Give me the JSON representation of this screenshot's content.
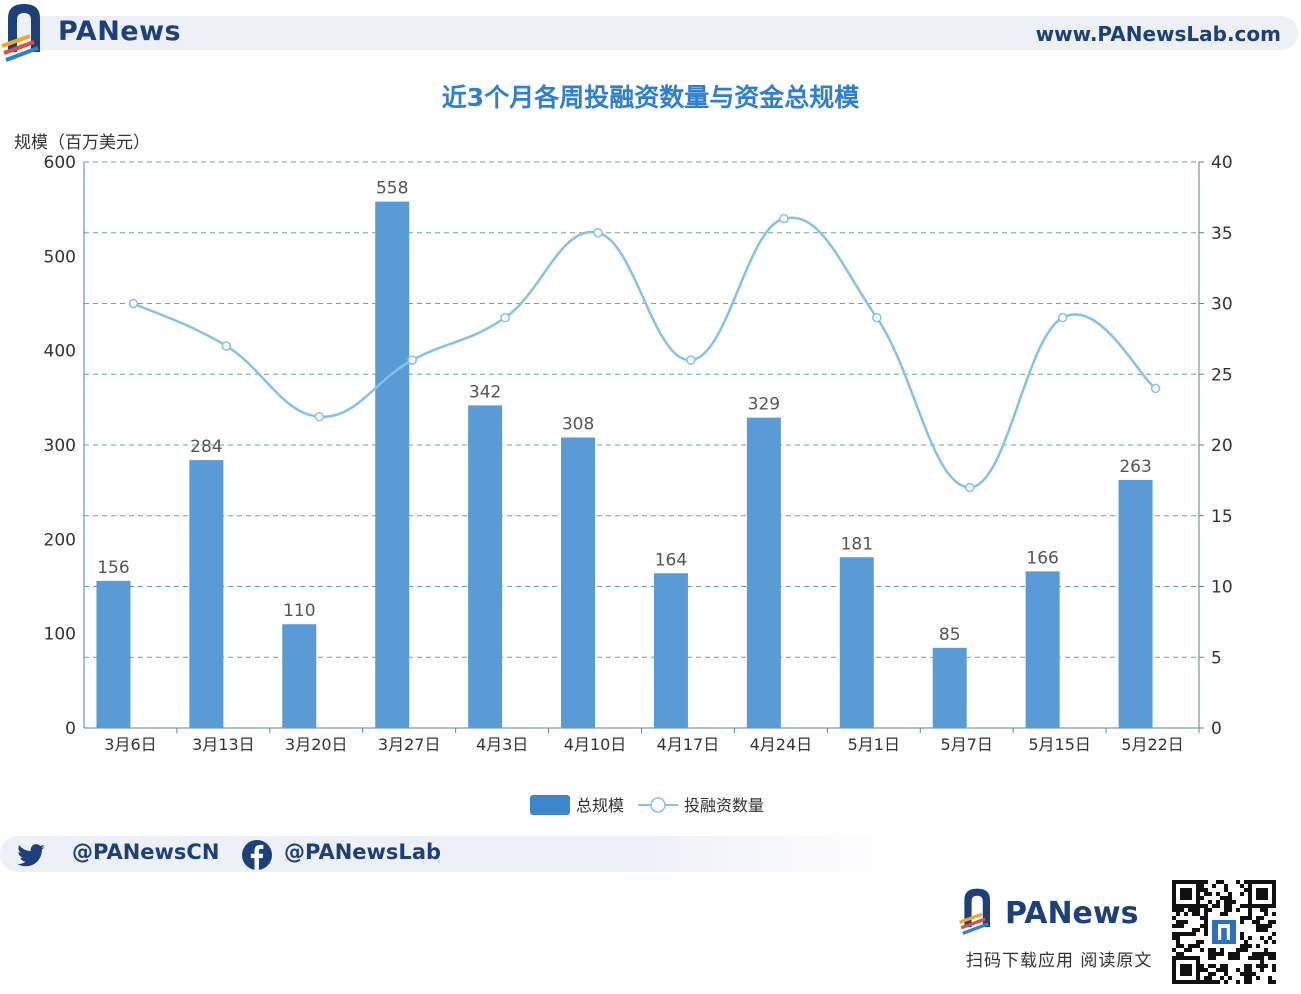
{
  "header": {
    "brand": "PANews",
    "url": "www.PANewsLab.com"
  },
  "chart_data": {
    "type": "bar",
    "title": "近3个月各周投融资数量与资金总规模",
    "ylabel": "规模（百万美元）",
    "categories": [
      "3月6日",
      "3月13日",
      "3月20日",
      "3月27日",
      "4月3日",
      "4月10日",
      "4月17日",
      "4月24日",
      "5月1日",
      "5月7日",
      "5月15日",
      "5月22日"
    ],
    "series": [
      {
        "name": "总规模",
        "type": "bar",
        "axis": "left",
        "values": [
          156,
          284,
          110,
          558,
          342,
          308,
          164,
          329,
          181,
          85,
          166,
          263
        ]
      },
      {
        "name": "投融资数量",
        "type": "line",
        "axis": "right",
        "values": [
          30,
          27,
          22,
          26,
          29,
          35,
          26,
          36,
          29,
          17,
          29,
          24
        ]
      }
    ],
    "ylim_left": [
      0,
      600
    ],
    "yticks_left": [
      0,
      100,
      200,
      300,
      400,
      500,
      600
    ],
    "ylim_right": [
      0,
      40
    ],
    "yticks_right": [
      0,
      5,
      10,
      15,
      20,
      25,
      30,
      35,
      40
    ],
    "grid": "horizontal-dashed",
    "legend": "bottom-center",
    "bar_color": "#5b9bd5",
    "line_color": "#85c1e9"
  },
  "footer": {
    "twitter": "@PANewsCN",
    "facebook": "@PANewsLab",
    "brand": "PANews",
    "download": "扫码下载应用  阅读原文"
  }
}
